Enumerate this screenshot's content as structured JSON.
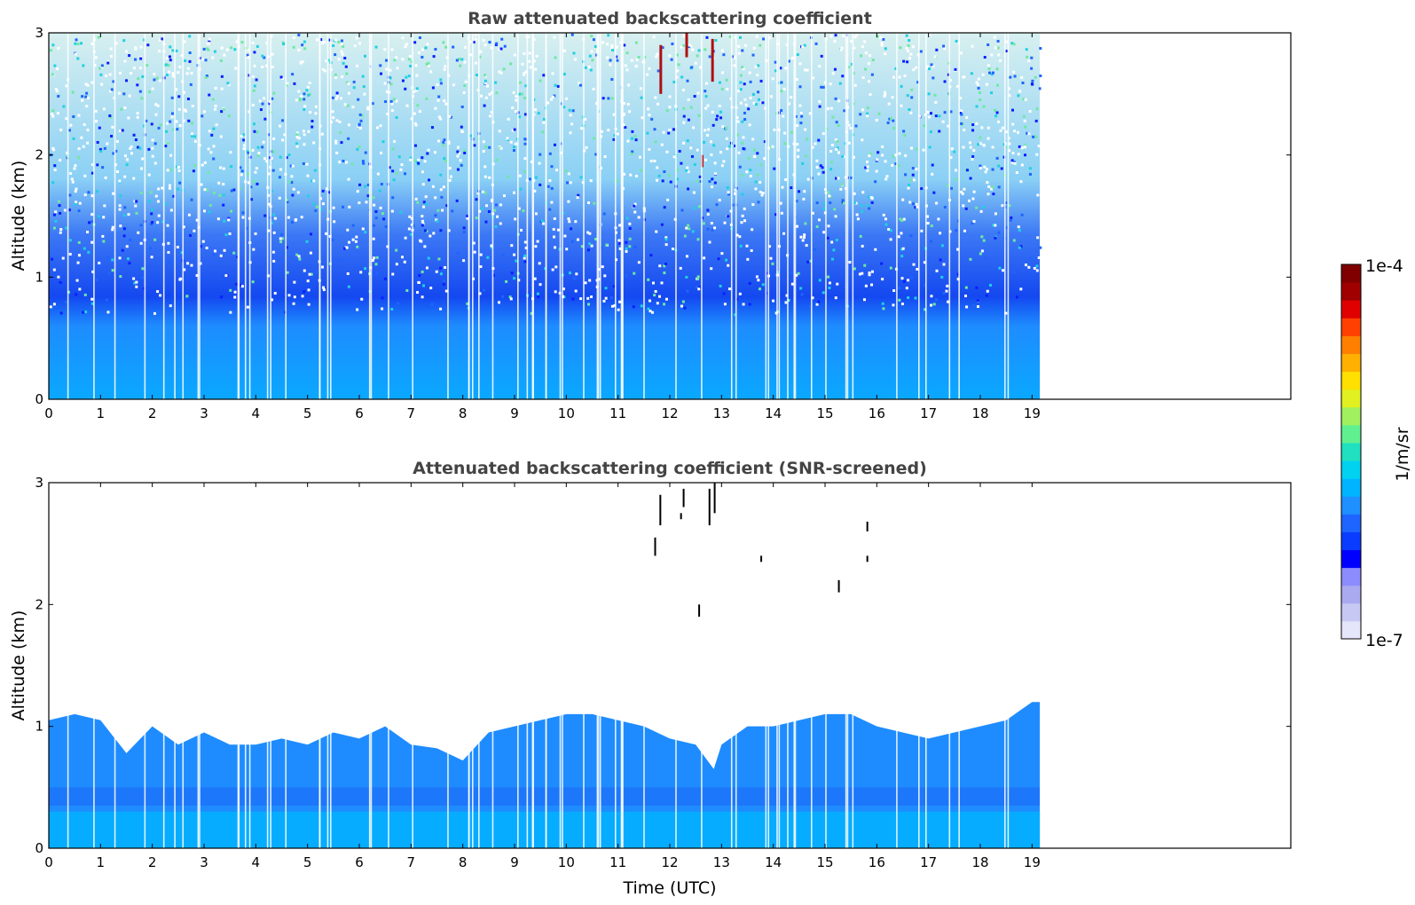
{
  "chart_data": [
    {
      "type": "heatmap",
      "title": "Raw attenuated backscattering coefficient",
      "xlabel": "",
      "ylabel": "Altitude (km)",
      "xlim": [
        0,
        24
      ],
      "ylim": [
        0,
        3
      ],
      "x_ticks": [
        "0",
        "1",
        "2",
        "3",
        "4",
        "5",
        "6",
        "7",
        "8",
        "9",
        "10",
        "11",
        "12",
        "13",
        "14",
        "15",
        "16",
        "17",
        "18",
        "19"
      ],
      "y_ticks": [
        "0",
        "1",
        "2",
        "3"
      ],
      "data_extent_hours": [
        0,
        19.15
      ],
      "description_values": {
        "near_surface_0_0.8km": "dense signal ~1e-6 1/m/sr",
        "above_1.5km": "noisy, sparse values",
        "high_values_near_12-13h_2-3km": "up to ~1e-4"
      }
    },
    {
      "type": "heatmap",
      "title": "Attenuated backscattering coefficient (SNR-screened)",
      "xlabel": "Time (UTC)",
      "ylabel": "Altitude (km)",
      "xlim": [
        0,
        24
      ],
      "ylim": [
        0,
        3
      ],
      "x_ticks": [
        "0",
        "1",
        "2",
        "3",
        "4",
        "5",
        "6",
        "7",
        "8",
        "9",
        "10",
        "11",
        "12",
        "13",
        "14",
        "15",
        "16",
        "17",
        "18",
        "19"
      ],
      "y_ticks": [
        "0",
        "1",
        "2",
        "3"
      ],
      "data_extent_hours": [
        0,
        19.15
      ],
      "boundary_layer_top_km": [
        [
          0,
          1.05
        ],
        [
          0.5,
          1.1
        ],
        [
          1,
          1.05
        ],
        [
          1.5,
          0.78
        ],
        [
          2,
          1.0
        ],
        [
          2.5,
          0.85
        ],
        [
          3,
          0.95
        ],
        [
          3.5,
          0.85
        ],
        [
          4,
          0.85
        ],
        [
          4.5,
          0.9
        ],
        [
          5,
          0.85
        ],
        [
          5.5,
          0.95
        ],
        [
          6,
          0.9
        ],
        [
          6.5,
          1.0
        ],
        [
          7,
          0.85
        ],
        [
          7.5,
          0.82
        ],
        [
          8,
          0.72
        ],
        [
          8.5,
          0.95
        ],
        [
          9,
          1.0
        ],
        [
          9.5,
          1.05
        ],
        [
          10,
          1.1
        ],
        [
          10.5,
          1.1
        ],
        [
          11,
          1.05
        ],
        [
          11.5,
          1.0
        ],
        [
          12,
          0.9
        ],
        [
          12.5,
          0.85
        ],
        [
          12.85,
          0.65
        ],
        [
          13,
          0.85
        ],
        [
          13.5,
          1.0
        ],
        [
          14,
          1.0
        ],
        [
          14.5,
          1.05
        ],
        [
          15,
          1.1
        ],
        [
          15.5,
          1.1
        ],
        [
          16,
          1.0
        ],
        [
          16.5,
          0.95
        ],
        [
          17,
          0.9
        ],
        [
          17.5,
          0.95
        ],
        [
          18,
          1.0
        ],
        [
          18.5,
          1.05
        ],
        [
          19,
          1.2
        ]
      ],
      "cloud_streaks": [
        {
          "t": 11.8,
          "z0": 2.65,
          "z1": 2.9
        },
        {
          "t": 11.7,
          "z0": 2.4,
          "z1": 2.55
        },
        {
          "t": 12.25,
          "z0": 2.8,
          "z1": 2.95
        },
        {
          "t": 12.2,
          "z0": 2.7,
          "z1": 2.75
        },
        {
          "t": 12.75,
          "z0": 2.65,
          "z1": 2.95
        },
        {
          "t": 12.85,
          "z0": 2.75,
          "z1": 3.0
        },
        {
          "t": 12.55,
          "z0": 1.9,
          "z1": 2.0
        },
        {
          "t": 13.75,
          "z0": 2.35,
          "z1": 2.4
        },
        {
          "t": 15.25,
          "z0": 2.1,
          "z1": 2.2
        },
        {
          "t": 15.8,
          "z0": 2.35,
          "z1": 2.4
        },
        {
          "t": 15.8,
          "z0": 2.6,
          "z1": 2.68
        }
      ]
    }
  ],
  "colorbar": {
    "label": "1/m/sr",
    "max_label": "1e-4",
    "min_label": "1e-7",
    "colors": [
      "#e6e6fa",
      "#c8c8f5",
      "#aaaaf0",
      "#8c8cff",
      "#0000ff",
      "#0a3cff",
      "#1e64ff",
      "#1e90ff",
      "#00b4ff",
      "#00d2f0",
      "#20e0c0",
      "#60f090",
      "#a0f060",
      "#e0f020",
      "#ffe000",
      "#ffb000",
      "#ff8000",
      "#ff4000",
      "#e00000",
      "#a00000",
      "#800000"
    ]
  },
  "colors": {
    "boundary_layer_dark": "#1e50f0",
    "boundary_layer_mid": "#1e8cff",
    "boundary_layer_light": "#00b4ff",
    "cloud": "#000000"
  }
}
